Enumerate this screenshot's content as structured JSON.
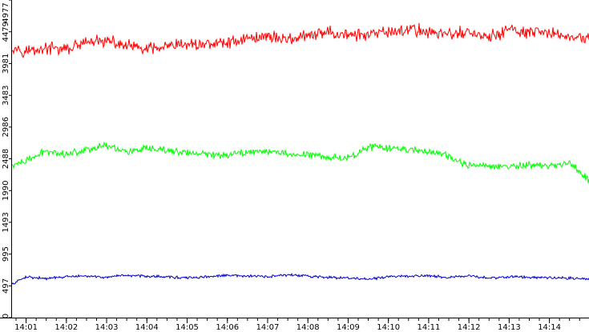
{
  "chart_data": {
    "type": "line",
    "title": "",
    "xlabel": "",
    "ylabel": "",
    "grid": false,
    "legend": "none",
    "x_range": [
      "14:00:39",
      "14:14:59"
    ],
    "ylim": [
      0,
      4977
    ],
    "y_ticks": [
      0,
      497,
      995,
      1493,
      1990,
      2488,
      2986,
      3483,
      3981,
      4479,
      4977
    ],
    "x_ticks": [
      "14:01",
      "14:02",
      "14:03",
      "14:04",
      "14:05",
      "14:06",
      "14:07",
      "14:08",
      "14:09",
      "14:10",
      "14:11",
      "14:12",
      "14:13",
      "14:14"
    ],
    "x_tick_times": [
      "14:01:00",
      "14:02:00",
      "14:03:00",
      "14:04:00",
      "14:05:00",
      "14:06:00",
      "14:07:00",
      "14:08:00",
      "14:09:00",
      "14:10:00",
      "14:11:00",
      "14:12:00",
      "14:13:00",
      "14:14:00"
    ],
    "series": [
      {
        "color": "#ff0000",
        "x": [
          "14:00:39",
          "14:01:00",
          "14:01:30",
          "14:02:00",
          "14:02:30",
          "14:03:00",
          "14:03:30",
          "14:04:00",
          "14:04:30",
          "14:05:00",
          "14:05:30",
          "14:06:00",
          "14:06:30",
          "14:07:00",
          "14:07:30",
          "14:08:00",
          "14:08:30",
          "14:09:00",
          "14:09:30",
          "14:10:00",
          "14:10:30",
          "14:11:00",
          "14:11:30",
          "14:12:00",
          "14:12:30",
          "14:13:00",
          "14:13:30",
          "14:14:00",
          "14:14:30",
          "14:14:59"
        ],
        "values": [
          4250,
          4180,
          4220,
          4200,
          4310,
          4330,
          4260,
          4200,
          4240,
          4280,
          4290,
          4310,
          4380,
          4410,
          4370,
          4400,
          4480,
          4430,
          4420,
          4470,
          4520,
          4480,
          4440,
          4470,
          4380,
          4520,
          4450,
          4460,
          4400,
          4380
        ]
      },
      {
        "color": "#00ff00",
        "x": [
          "14:00:39",
          "14:01:00",
          "14:01:30",
          "14:02:00",
          "14:02:30",
          "14:03:00",
          "14:03:30",
          "14:04:00",
          "14:04:30",
          "14:05:00",
          "14:05:30",
          "14:06:00",
          "14:06:30",
          "14:07:00",
          "14:07:30",
          "14:08:00",
          "14:08:30",
          "14:09:00",
          "14:09:30",
          "14:10:00",
          "14:10:30",
          "14:11:00",
          "14:11:30",
          "14:12:00",
          "14:12:30",
          "14:13:00",
          "14:13:30",
          "14:14:00",
          "14:14:30",
          "14:14:59"
        ],
        "values": [
          2380,
          2450,
          2610,
          2560,
          2640,
          2700,
          2600,
          2640,
          2620,
          2580,
          2560,
          2550,
          2600,
          2610,
          2560,
          2560,
          2520,
          2500,
          2680,
          2650,
          2640,
          2610,
          2520,
          2380,
          2380,
          2360,
          2390,
          2380,
          2430,
          2150
        ]
      },
      {
        "color": "#0000cc",
        "x": [
          "14:00:39",
          "14:01:00",
          "14:01:30",
          "14:02:00",
          "14:02:30",
          "14:03:00",
          "14:03:30",
          "14:04:00",
          "14:04:30",
          "14:05:00",
          "14:05:30",
          "14:06:00",
          "14:06:30",
          "14:07:00",
          "14:07:30",
          "14:08:00",
          "14:08:30",
          "14:09:00",
          "14:09:30",
          "14:10:00",
          "14:10:30",
          "14:11:00",
          "14:11:30",
          "14:12:00",
          "14:12:30",
          "14:13:00",
          "14:13:30",
          "14:14:00",
          "14:14:30",
          "14:14:59"
        ],
        "values": [
          520,
          640,
          610,
          640,
          650,
          630,
          660,
          650,
          640,
          620,
          640,
          660,
          650,
          640,
          670,
          650,
          630,
          620,
          600,
          640,
          650,
          660,
          630,
          650,
          620,
          640,
          630,
          630,
          620,
          600
        ]
      }
    ]
  }
}
